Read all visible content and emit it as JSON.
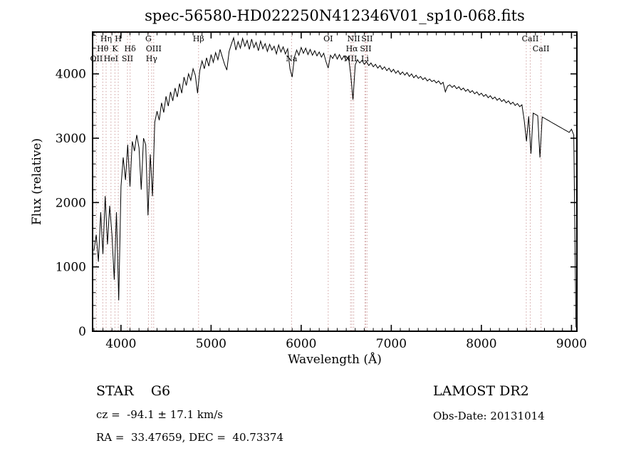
{
  "footer": {
    "class_label": "STAR    G6",
    "survey": "LAMOST DR2",
    "cz": "cz =  -94.1 ± 17.1 km/s",
    "obs_date": "Obs-Date: 20131014",
    "ra_dec": "RA =  33.47659, DEC =  40.73374"
  },
  "chart_data": {
    "type": "line",
    "title": "spec-56580-HD022250N412346V01_sp10-068.fits",
    "xlabel": "Wavelength (Å)",
    "ylabel": "Flux (relative)",
    "xlim": [
      3685,
      9060
    ],
    "ylim": [
      0,
      4650
    ],
    "x_ticks_major": [
      4000,
      5000,
      6000,
      7000,
      8000,
      9000
    ],
    "y_ticks_major": [
      0,
      1000,
      2000,
      3000,
      4000
    ],
    "x_minor_step": 100,
    "y_minor_step": 200,
    "grid": false,
    "line_color": "#000000",
    "marker_line_color": "#cf9f9f",
    "x_start": 3700,
    "x_step": 25,
    "flux": [
      1250,
      1500,
      1080,
      1850,
      1200,
      2100,
      1350,
      1950,
      1500,
      800,
      1850,
      480,
      2250,
      2700,
      2350,
      2900,
      2250,
      2950,
      2800,
      3050,
      2850,
      2200,
      3000,
      2900,
      1800,
      2750,
      2100,
      3250,
      3420,
      3280,
      3550,
      3400,
      3650,
      3500,
      3720,
      3580,
      3780,
      3640,
      3850,
      3700,
      3950,
      3820,
      4000,
      3900,
      4080,
      3980,
      3700,
      4050,
      4200,
      4080,
      4250,
      4120,
      4300,
      4180,
      4330,
      4220,
      4380,
      4260,
      4150,
      4060,
      4350,
      4460,
      4560,
      4370,
      4500,
      4400,
      4550,
      4430,
      4520,
      4380,
      4540,
      4410,
      4490,
      4360,
      4510,
      4390,
      4470,
      4350,
      4460,
      4370,
      4430,
      4310,
      4450,
      4340,
      4420,
      4310,
      4390,
      4080,
      3950,
      4260,
      4370,
      4290,
      4410,
      4320,
      4400,
      4300,
      4380,
      4290,
      4360,
      4280,
      4340,
      4260,
      4320,
      4190,
      4090,
      4290,
      4240,
      4310,
      4230,
      4300,
      4220,
      4280,
      4210,
      4270,
      3980,
      3600,
      4140,
      4220,
      4170,
      4210,
      4150,
      4190,
      4130,
      4170,
      4110,
      4150,
      4090,
      4130,
      4070,
      4110,
      4050,
      4090,
      4030,
      4070,
      4010,
      4050,
      3990,
      4030,
      3980,
      4020,
      3960,
      4000,
      3940,
      3980,
      3930,
      3960,
      3910,
      3940,
      3890,
      3920,
      3880,
      3900,
      3860,
      3890,
      3840,
      3870,
      3720,
      3810,
      3830,
      3790,
      3820,
      3770,
      3800,
      3750,
      3780,
      3730,
      3760,
      3710,
      3740,
      3690,
      3720,
      3670,
      3700,
      3650,
      3680,
      3630,
      3660,
      3610,
      3640,
      3590,
      3620,
      3570,
      3600,
      3550,
      3580,
      3530,
      3560,
      3510,
      3540,
      3490,
      3520,
      3280,
      2950,
      3340,
      2760,
      3390,
      3370,
      3350,
      2700,
      3330,
      3310,
      3290,
      3270,
      3250,
      3230,
      3210,
      3190,
      3170,
      3150,
      3130,
      3110,
      3090,
      3140,
      3050,
      60
    ],
    "spectral_lines": [
      {
        "label": "OII",
        "wavelength": 3727,
        "row": 3
      },
      {
        "label": "Hθ",
        "wavelength": 3798,
        "row": 2
      },
      {
        "label": "Hη",
        "wavelength": 3835,
        "row": 1
      },
      {
        "label": "HeI",
        "wavelength": 3889,
        "row": 3
      },
      {
        "label": "K",
        "wavelength": 3933,
        "row": 2
      },
      {
        "label": "H",
        "wavelength": 3970,
        "row": 1
      },
      {
        "label": "SII",
        "wavelength": 4072,
        "row": 3
      },
      {
        "label": "Hδ",
        "wavelength": 4101,
        "row": 2
      },
      {
        "label": "G",
        "wavelength": 4305,
        "row": 1
      },
      {
        "label": "Hγ",
        "wavelength": 4340,
        "row": 3
      },
      {
        "label": "OIII",
        "wavelength": 4363,
        "row": 2
      },
      {
        "label": "Hβ",
        "wavelength": 4861,
        "row": 1
      },
      {
        "label": "Na",
        "wavelength": 5893,
        "row": 3
      },
      {
        "label": "OI",
        "wavelength": 6300,
        "row": 1
      },
      {
        "label": "NII",
        "wavelength": 6548,
        "row": 3
      },
      {
        "label": "Hα",
        "wavelength": 6563,
        "row": 2
      },
      {
        "label": "NII",
        "wavelength": 6583,
        "row": 1
      },
      {
        "label": "Li",
        "wavelength": 6708,
        "row": 3
      },
      {
        "label": "SII",
        "wavelength": 6716,
        "row": 2
      },
      {
        "label": "SII",
        "wavelength": 6731,
        "row": 1
      },
      {
        "label": "",
        "wavelength": 8498,
        "row": 0
      },
      {
        "label": "CaII",
        "wavelength": 8542,
        "row": 1
      },
      {
        "label": "CaII",
        "wavelength": 8662,
        "row": 2
      }
    ]
  }
}
